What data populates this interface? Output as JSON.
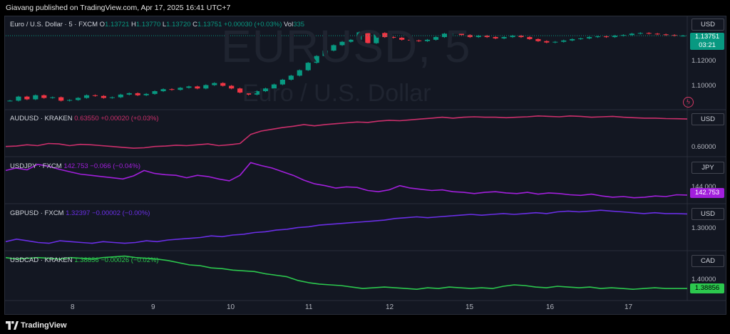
{
  "header": {
    "publisher_line": "Giavang published on TradingView.com, Apr 17, 2025 16:41 UTC+7"
  },
  "panes": [
    {
      "symbol_line": "Euro / U.S. Dollar · 5 · FXCM",
      "ohlc": {
        "o_label": "O",
        "o": "1.13721",
        "h_label": "H",
        "h": "1.13770",
        "l_label": "L",
        "l": "1.13720",
        "c_label": "C",
        "c": "1.13751",
        "change": "+0.00030 (+0.03%)",
        "vol_label": "Vol",
        "vol": "335"
      },
      "currency": "USD",
      "watermark_symbol": "EURUSD, 5",
      "watermark_name": "Euro / U.S. Dollar",
      "axis_ticks": [
        "1.12000",
        "1.10000"
      ],
      "last_price": "1.13751",
      "countdown": "03:21",
      "price_tag_color": "#089981",
      "series": [
        1.0895,
        1.0925,
        1.0905,
        1.0935,
        1.0915,
        1.092,
        1.0895,
        1.09,
        1.0915,
        1.0935,
        1.093,
        1.0915,
        1.092,
        1.094,
        1.095,
        1.0935,
        1.0945,
        1.0965,
        1.098,
        1.0975,
        1.099,
        1.1,
        1.0985,
        1.101,
        1.1025,
        1.1005,
        1.0985,
        1.0955,
        1.094,
        1.0965,
        1.0985,
        1.1015,
        1.105,
        1.108,
        1.112,
        1.1175,
        1.1225,
        1.1265,
        1.1305,
        1.133,
        1.1345,
        1.14,
        1.132,
        1.1395,
        1.1365,
        1.136,
        1.1345,
        1.134,
        1.1335,
        1.1345,
        1.1365,
        1.139,
        1.1395,
        1.138,
        1.1365,
        1.1375,
        1.1365,
        1.1355,
        1.1365,
        1.1375,
        1.1365,
        1.135,
        1.1335,
        1.1325,
        1.133,
        1.134,
        1.135,
        1.1355,
        1.1365,
        1.137,
        1.1365,
        1.1375,
        1.138,
        1.139,
        1.1395,
        1.139,
        1.1385,
        1.138,
        1.1375,
        1.1375
      ]
    },
    {
      "symbol_line": "AUDUSD · KRAKEN",
      "values_text": "0.63550  +0.00020 (+0.03%)",
      "currency": "USD",
      "axis_ticks": [
        "0.60000"
      ],
      "color": "#cc2f6b",
      "series": [
        0.6045,
        0.605,
        0.6065,
        0.6055,
        0.608,
        0.6075,
        0.6055,
        0.607,
        0.6065,
        0.6055,
        0.6045,
        0.6035,
        0.6025,
        0.603,
        0.6045,
        0.605,
        0.606,
        0.6055,
        0.6065,
        0.6075,
        0.6055,
        0.6065,
        0.608,
        0.6185,
        0.6225,
        0.6245,
        0.6265,
        0.628,
        0.63,
        0.6285,
        0.63,
        0.631,
        0.632,
        0.633,
        0.6325,
        0.634,
        0.635,
        0.6345,
        0.6355,
        0.6365,
        0.6375,
        0.6385,
        0.6375,
        0.6385,
        0.639,
        0.6385,
        0.6385,
        0.638,
        0.6385,
        0.639,
        0.64,
        0.6395,
        0.639,
        0.64,
        0.6395,
        0.6385,
        0.639,
        0.6395,
        0.6385,
        0.638,
        0.6375,
        0.6375,
        0.637,
        0.6368,
        0.6365
      ]
    },
    {
      "symbol_line": "USDJPY · FXCM",
      "values_text": "142.753  −0.066 (−0.04%)",
      "currency": "JPY",
      "axis_ticks": [
        "144.000"
      ],
      "last_price": "142.753",
      "color": "#a21fdc",
      "series": [
        146.8,
        147.2,
        146.9,
        147.8,
        147.5,
        147.0,
        146.6,
        146.2,
        146.0,
        145.8,
        145.6,
        145.4,
        145.9,
        146.8,
        146.3,
        146.1,
        146.0,
        145.6,
        146.0,
        145.8,
        145.4,
        145.1,
        146.0,
        148.1,
        147.6,
        147.2,
        146.6,
        146.0,
        145.2,
        144.6,
        144.3,
        143.9,
        144.1,
        144.0,
        143.5,
        143.3,
        143.6,
        144.3,
        143.9,
        143.7,
        143.5,
        143.6,
        143.3,
        143.2,
        143.0,
        143.2,
        143.3,
        143.1,
        143.0,
        143.2,
        142.9,
        143.1,
        143.0,
        142.8,
        142.7,
        142.9,
        142.6,
        142.4,
        142.5,
        142.3,
        142.4,
        142.6,
        142.5,
        142.8,
        142.75
      ]
    },
    {
      "symbol_line": "GBPUSD · FXCM",
      "values_text": "1.32397  −0.00002 (−0.00%)",
      "currency": "USD",
      "axis_ticks": [
        "1.30000"
      ],
      "color": "#6a2ee6",
      "series": [
        1.2905,
        1.2935,
        1.2915,
        1.2895,
        1.2885,
        1.2915,
        1.2905,
        1.2895,
        1.2885,
        1.2905,
        1.2895,
        1.2885,
        1.2895,
        1.2915,
        1.2905,
        1.2925,
        1.2935,
        1.2945,
        1.2955,
        1.2975,
        1.2965,
        1.2985,
        1.2995,
        1.3015,
        1.3025,
        1.3045,
        1.3055,
        1.3075,
        1.3085,
        1.3105,
        1.3115,
        1.3125,
        1.3135,
        1.3145,
        1.3155,
        1.3165,
        1.3185,
        1.3195,
        1.3205,
        1.3195,
        1.3205,
        1.3215,
        1.3225,
        1.3235,
        1.3225,
        1.3235,
        1.3245,
        1.3235,
        1.3245,
        1.3255,
        1.3245,
        1.3265,
        1.3275,
        1.3265,
        1.3275,
        1.3285,
        1.3275,
        1.3265,
        1.3255,
        1.3245,
        1.3255,
        1.3245,
        1.3245,
        1.324
      ]
    },
    {
      "symbol_line": "USDCAD · KRAKEN",
      "values_text": "1.38856  −0.00026 (−0.02%)",
      "currency": "CAD",
      "axis_ticks": [
        "1.40000"
      ],
      "last_price": "1.38856",
      "color": "#2cc84e",
      "series": [
        1.4305,
        1.4285,
        1.4295,
        1.4305,
        1.4295,
        1.4285,
        1.4305,
        1.4295,
        1.4285,
        1.4305,
        1.4315,
        1.4325,
        1.4305,
        1.4295,
        1.4285,
        1.4265,
        1.4235,
        1.4205,
        1.4195,
        1.4165,
        1.4155,
        1.4135,
        1.4125,
        1.4115,
        1.4085,
        1.4065,
        1.4045,
        1.3995,
        1.3965,
        1.3945,
        1.3935,
        1.3925,
        1.3905,
        1.3885,
        1.3895,
        1.3905,
        1.3895,
        1.3885,
        1.3875,
        1.3895,
        1.3885,
        1.3905,
        1.3895,
        1.3885,
        1.3895,
        1.3885,
        1.3915,
        1.3935,
        1.3925,
        1.3905,
        1.3895,
        1.3915,
        1.3905,
        1.3895,
        1.3905,
        1.3885,
        1.3895,
        1.3885,
        1.3875,
        1.3885,
        1.3895,
        1.3885,
        1.3885,
        1.38856
      ]
    }
  ],
  "time_axis": [
    "8",
    "9",
    "10",
    "11",
    "12",
    "15",
    "16",
    "17"
  ],
  "footer": {
    "brand": "TradingView"
  },
  "bolt_glyph": "ϟ",
  "colors": {
    "background": "#131722",
    "up": "#089981",
    "down": "#f23645"
  }
}
